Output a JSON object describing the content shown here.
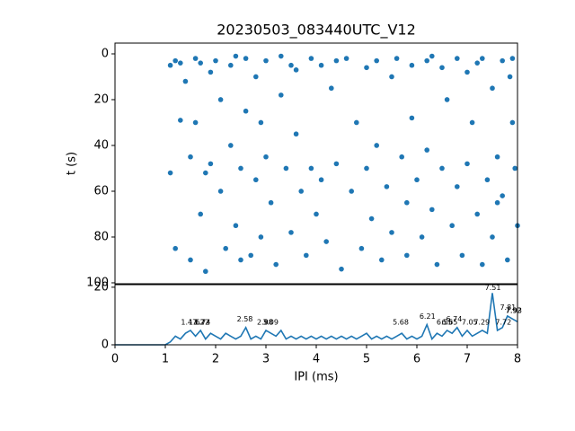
{
  "chart_data": [
    {
      "type": "scatter",
      "title": "20230503_083440UTC_V12",
      "y_label": "t (s)",
      "color": "#1f77b4",
      "xlim": [
        0,
        8
      ],
      "ylim": [
        -4.7,
        100.4
      ],
      "y_inverted": true,
      "yticks": [
        0,
        20,
        40,
        60,
        80,
        100
      ],
      "x": [
        1.1,
        1.2,
        1.3,
        1.1,
        1.2,
        1.3,
        1.4,
        1.5,
        1.5,
        1.6,
        1.6,
        1.7,
        1.8,
        1.8,
        1.9,
        1.9,
        2.0,
        2.1,
        2.1,
        2.2,
        2.3,
        2.3,
        2.4,
        2.5,
        2.5,
        2.6,
        2.6,
        2.7,
        2.8,
        2.8,
        2.9,
        2.9,
        3.0,
        3.0,
        3.1,
        3.2,
        3.3,
        3.3,
        3.4,
        3.5,
        3.5,
        3.6,
        3.7,
        3.8,
        3.9,
        3.9,
        4.0,
        4.1,
        4.1,
        4.2,
        4.3,
        4.4,
        4.5,
        4.6,
        4.7,
        4.8,
        4.9,
        5.0,
        5.0,
        5.1,
        5.2,
        5.2,
        5.3,
        5.4,
        5.5,
        5.5,
        5.6,
        5.7,
        5.8,
        5.8,
        5.9,
        5.9,
        6.0,
        6.1,
        6.2,
        6.2,
        6.3,
        6.4,
        6.5,
        6.5,
        6.6,
        6.7,
        6.8,
        6.8,
        6.9,
        7.0,
        7.0,
        7.1,
        7.2,
        7.3,
        7.3,
        7.4,
        7.5,
        7.5,
        7.6,
        7.7,
        7.7,
        7.8,
        7.9,
        7.9,
        7.95,
        8.0,
        7.85,
        7.6,
        1.7,
        2.4,
        3.6,
        4.4,
        6.3,
        7.2
      ],
      "values": [
        5,
        3,
        29,
        52,
        85,
        4,
        12,
        45,
        90,
        2,
        30,
        70,
        52,
        95,
        8,
        48,
        3,
        20,
        60,
        85,
        5,
        40,
        75,
        50,
        90,
        2,
        25,
        88,
        55,
        10,
        30,
        80,
        45,
        3,
        65,
        92,
        1,
        18,
        50,
        78,
        5,
        35,
        60,
        88,
        2,
        50,
        70,
        5,
        55,
        82,
        15,
        48,
        94,
        2,
        60,
        30,
        85,
        6,
        50,
        72,
        3,
        40,
        90,
        58,
        10,
        78,
        2,
        45,
        65,
        88,
        5,
        28,
        55,
        80,
        3,
        42,
        68,
        92,
        6,
        50,
        20,
        75,
        2,
        58,
        88,
        8,
        48,
        30,
        70,
        2,
        92,
        55,
        15,
        80,
        45,
        3,
        62,
        90,
        2,
        30,
        50,
        75,
        10,
        65,
        4,
        1,
        7,
        3,
        1,
        4
      ]
    },
    {
      "type": "line",
      "x_label": "IPI (ms)",
      "color": "#1f77b4",
      "xlim": [
        0,
        8
      ],
      "xticks": [
        0,
        1,
        2,
        3,
        4,
        5,
        6,
        7,
        8
      ],
      "ylim": [
        0,
        20.9
      ],
      "yticks": [
        0,
        20
      ],
      "x": [
        0,
        0.1,
        0.2,
        0.3,
        0.4,
        0.5,
        0.6,
        0.7,
        0.8,
        0.9,
        1.0,
        1.1,
        1.2,
        1.3,
        1.4,
        1.5,
        1.6,
        1.7,
        1.8,
        1.9,
        2.0,
        2.1,
        2.2,
        2.3,
        2.4,
        2.5,
        2.6,
        2.7,
        2.8,
        2.9,
        3.0,
        3.1,
        3.2,
        3.3,
        3.4,
        3.5,
        3.6,
        3.7,
        3.8,
        3.9,
        4.0,
        4.1,
        4.2,
        4.3,
        4.4,
        4.5,
        4.6,
        4.7,
        4.8,
        4.9,
        5.0,
        5.1,
        5.2,
        5.3,
        5.4,
        5.5,
        5.6,
        5.7,
        5.8,
        5.9,
        6.0,
        6.1,
        6.2,
        6.3,
        6.4,
        6.5,
        6.6,
        6.7,
        6.8,
        6.9,
        7.0,
        7.1,
        7.2,
        7.3,
        7.4,
        7.5,
        7.6,
        7.7,
        7.8,
        7.9,
        8.0
      ],
      "values": [
        0,
        0,
        0,
        0,
        0,
        0,
        0,
        0,
        0,
        0,
        0,
        1,
        3,
        2,
        4,
        5,
        3,
        5,
        2,
        4,
        3,
        2,
        4,
        3,
        2,
        3,
        6,
        2,
        3,
        2,
        5,
        4,
        3,
        5,
        2,
        3,
        2,
        3,
        2,
        3,
        2,
        3,
        2,
        3,
        2,
        3,
        2,
        3,
        2,
        3,
        4,
        2,
        3,
        2,
        3,
        2,
        3,
        4,
        2,
        3,
        2,
        3,
        7,
        2,
        4,
        3,
        5,
        4,
        6,
        3,
        5,
        3,
        4,
        5,
        4,
        18,
        5,
        6,
        10,
        9,
        8
      ],
      "annotations": [
        {
          "x": 1.47,
          "y": 6
        },
        {
          "x": 1.62,
          "y": 6
        },
        {
          "x": 1.72,
          "y": 6
        },
        {
          "x": 1.74,
          "y": 6
        },
        {
          "x": 2.58,
          "y": 7
        },
        {
          "x": 2.98,
          "y": 6
        },
        {
          "x": 3.0,
          "y": 6
        },
        {
          "x": 3.09,
          "y": 6
        },
        {
          "x": 5.68,
          "y": 6
        },
        {
          "x": 6.21,
          "y": 8
        },
        {
          "x": 6.55,
          "y": 6
        },
        {
          "x": 6.65,
          "y": 6
        },
        {
          "x": 6.74,
          "y": 7
        },
        {
          "x": 7.05,
          "y": 6
        },
        {
          "x": 7.29,
          "y": 6
        },
        {
          "x": 7.51,
          "y": 18
        },
        {
          "x": 7.72,
          "y": 6
        },
        {
          "x": 7.81,
          "y": 11
        },
        {
          "x": 7.92,
          "y": 10
        },
        {
          "x": 7.93,
          "y": 10
        }
      ]
    }
  ]
}
